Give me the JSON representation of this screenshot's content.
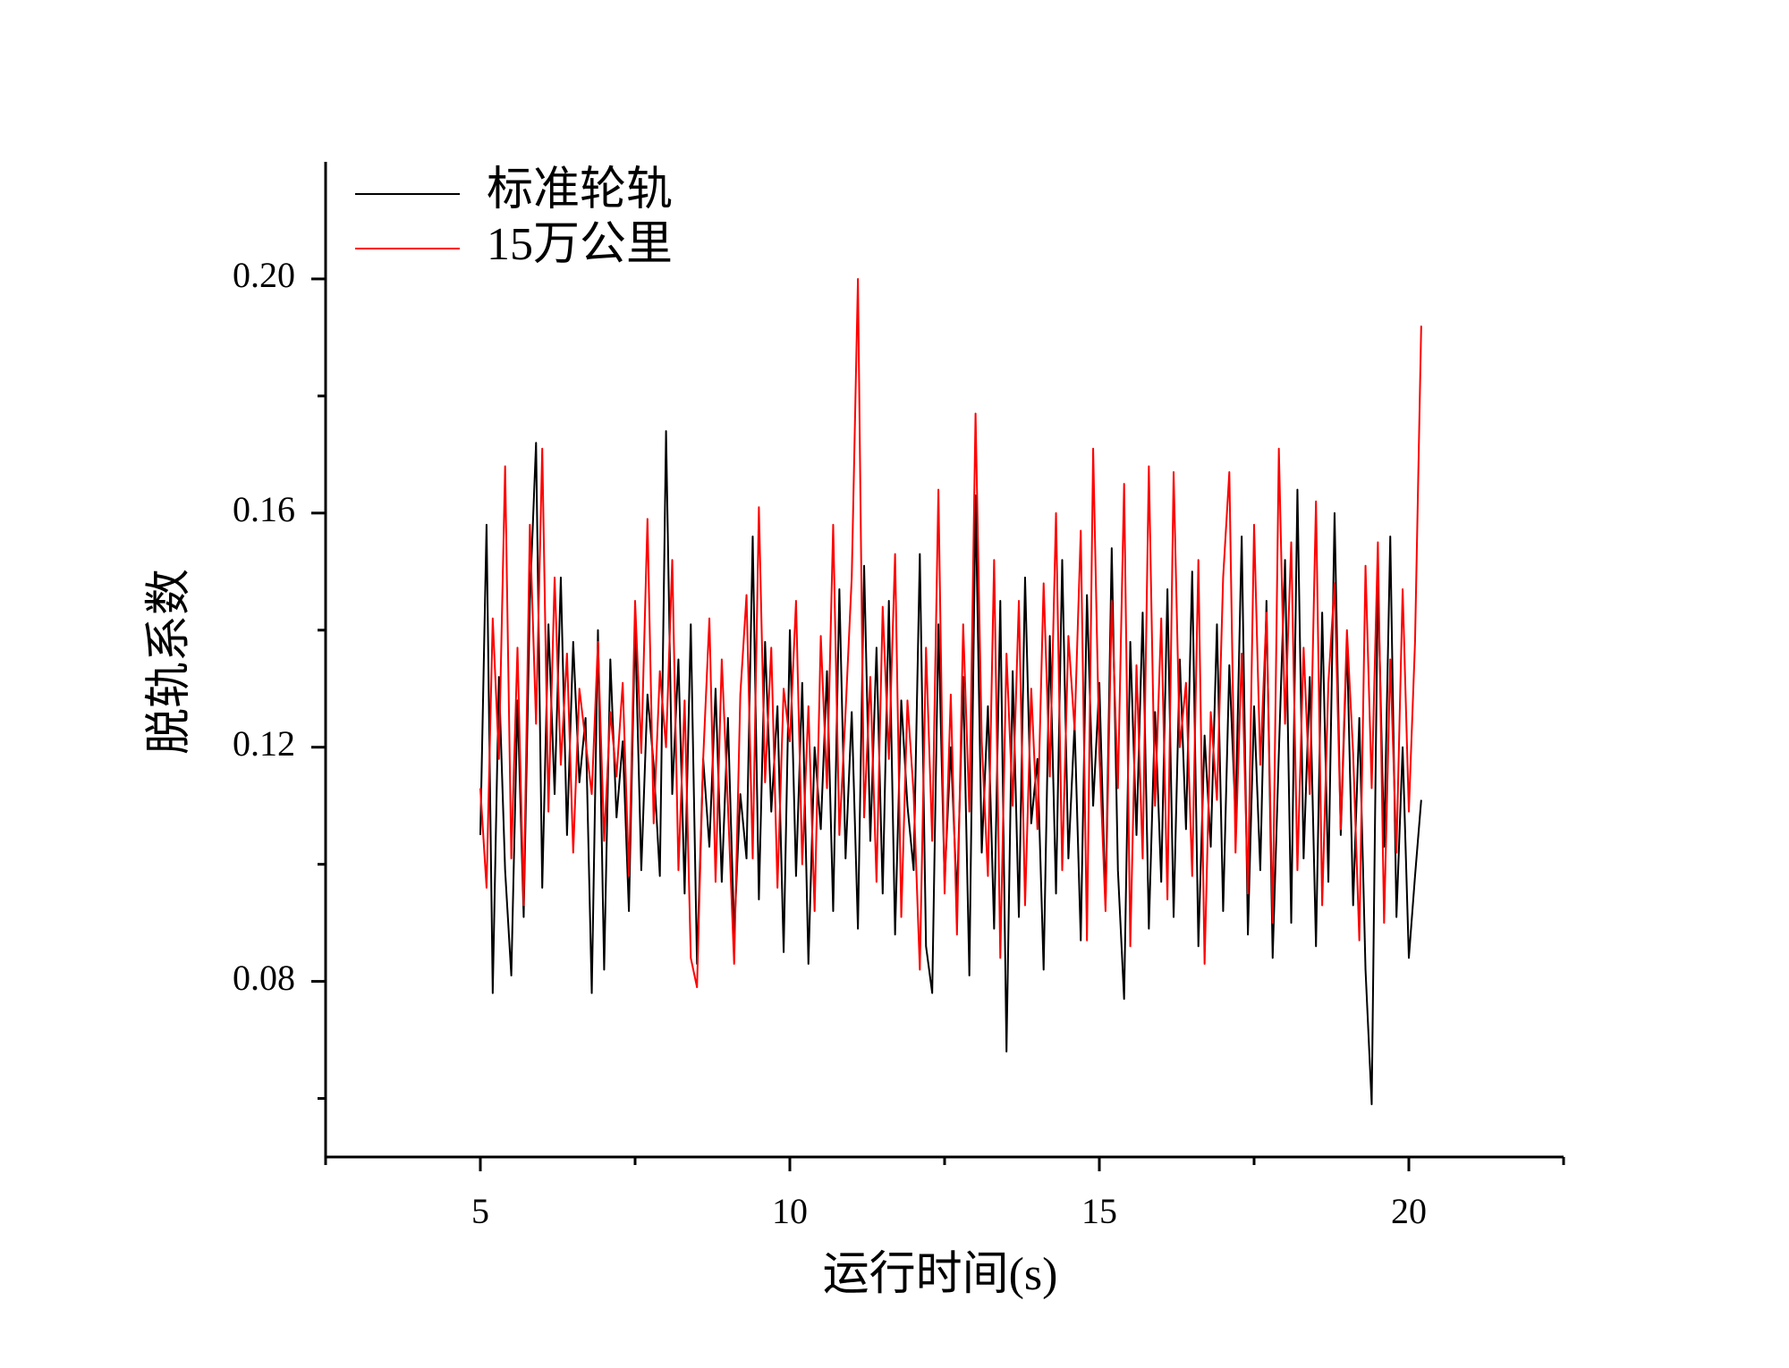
{
  "chart_data": {
    "type": "line",
    "xlabel": "运行时间(s)",
    "ylabel": "脱轨系数",
    "xlim": [
      2.5,
      22.5
    ],
    "xticks": [
      5,
      10,
      15,
      20
    ],
    "xminor_ticks": [
      2.5,
      7.5,
      12.5,
      17.5,
      22.5
    ],
    "ylim": [
      0.05,
      0.22
    ],
    "yticks": [
      {
        "value": 0.08,
        "label": "0.08"
      },
      {
        "value": 0.12,
        "label": "0.12"
      },
      {
        "value": 0.16,
        "label": "0.16"
      },
      {
        "value": 0.2,
        "label": "0.20"
      }
    ],
    "yminor_ticks": [
      0.06,
      0.1,
      0.14,
      0.18
    ],
    "legend": "upper left",
    "grid": false,
    "x": [
      5.0,
      5.1,
      5.2,
      5.3,
      5.4,
      5.5,
      5.6,
      5.7,
      5.8,
      5.9,
      6.0,
      6.1,
      6.2,
      6.3,
      6.4,
      6.5,
      6.6,
      6.7,
      6.8,
      6.9,
      7.0,
      7.1,
      7.2,
      7.3,
      7.4,
      7.5,
      7.6,
      7.7,
      7.8,
      7.9,
      8.0,
      8.1,
      8.2,
      8.3,
      8.4,
      8.5,
      8.6,
      8.7,
      8.8,
      8.9,
      9.0,
      9.1,
      9.2,
      9.3,
      9.4,
      9.5,
      9.6,
      9.7,
      9.8,
      9.9,
      10.0,
      10.1,
      10.2,
      10.3,
      10.4,
      10.5,
      10.6,
      10.7,
      10.8,
      10.9,
      11.0,
      11.1,
      11.2,
      11.3,
      11.4,
      11.5,
      11.6,
      11.7,
      11.8,
      11.9,
      12.0,
      12.1,
      12.2,
      12.3,
      12.4,
      12.5,
      12.6,
      12.7,
      12.8,
      12.9,
      13.0,
      13.1,
      13.2,
      13.3,
      13.4,
      13.5,
      13.6,
      13.7,
      13.8,
      13.9,
      14.0,
      14.1,
      14.2,
      14.3,
      14.4,
      14.5,
      14.6,
      14.7,
      14.8,
      14.9,
      15.0,
      15.1,
      15.2,
      15.3,
      15.4,
      15.5,
      15.6,
      15.7,
      15.8,
      15.9,
      16.0,
      16.1,
      16.2,
      16.3,
      16.4,
      16.5,
      16.6,
      16.7,
      16.8,
      16.9,
      17.0,
      17.1,
      17.2,
      17.3,
      17.4,
      17.5,
      17.6,
      17.7,
      17.8,
      17.9,
      18.0,
      18.1,
      18.2,
      18.3,
      18.4,
      18.5,
      18.6,
      18.7,
      18.8,
      18.9,
      19.0,
      19.1,
      19.2,
      19.3,
      19.4,
      19.5,
      19.6,
      19.7,
      19.8,
      19.9,
      20.0,
      20.1,
      20.2
    ],
    "series": [
      {
        "name": "标准轮轨",
        "color": "#000000",
        "values": [
          0.105,
          0.158,
          0.078,
          0.132,
          0.099,
          0.081,
          0.128,
          0.091,
          0.145,
          0.172,
          0.096,
          0.141,
          0.112,
          0.149,
          0.105,
          0.138,
          0.114,
          0.125,
          0.078,
          0.14,
          0.082,
          0.135,
          0.108,
          0.121,
          0.092,
          0.141,
          0.099,
          0.129,
          0.117,
          0.098,
          0.174,
          0.112,
          0.135,
          0.095,
          0.141,
          0.083,
          0.118,
          0.103,
          0.13,
          0.097,
          0.125,
          0.088,
          0.112,
          0.101,
          0.156,
          0.094,
          0.138,
          0.109,
          0.127,
          0.085,
          0.14,
          0.098,
          0.131,
          0.083,
          0.12,
          0.106,
          0.133,
          0.092,
          0.147,
          0.101,
          0.126,
          0.089,
          0.151,
          0.104,
          0.137,
          0.095,
          0.145,
          0.088,
          0.128,
          0.11,
          0.099,
          0.153,
          0.086,
          0.078,
          0.141,
          0.097,
          0.12,
          0.094,
          0.132,
          0.081,
          0.163,
          0.102,
          0.127,
          0.089,
          0.145,
          0.068,
          0.133,
          0.091,
          0.149,
          0.107,
          0.118,
          0.082,
          0.139,
          0.095,
          0.152,
          0.101,
          0.124,
          0.087,
          0.146,
          0.11,
          0.131,
          0.093,
          0.154,
          0.099,
          0.077,
          0.138,
          0.105,
          0.143,
          0.089,
          0.126,
          0.097,
          0.147,
          0.091,
          0.135,
          0.106,
          0.15,
          0.086,
          0.122,
          0.103,
          0.141,
          0.092,
          0.134,
          0.108,
          0.156,
          0.088,
          0.127,
          0.099,
          0.145,
          0.084,
          0.119,
          0.152,
          0.09,
          0.164,
          0.101,
          0.132,
          0.086,
          0.143,
          0.097,
          0.16,
          0.105,
          0.138,
          0.093,
          0.125,
          0.082,
          0.059,
          0.149,
          0.103,
          0.156,
          0.091,
          0.12,
          0.084,
          0.098,
          0.111
        ]
      },
      {
        "name": "15万公里",
        "color": "#ff0000",
        "values": [
          0.113,
          0.096,
          0.142,
          0.118,
          0.168,
          0.101,
          0.137,
          0.093,
          0.158,
          0.124,
          0.171,
          0.109,
          0.149,
          0.117,
          0.136,
          0.102,
          0.13,
          0.121,
          0.112,
          0.138,
          0.104,
          0.126,
          0.115,
          0.131,
          0.098,
          0.145,
          0.119,
          0.159,
          0.107,
          0.133,
          0.12,
          0.152,
          0.099,
          0.128,
          0.084,
          0.079,
          0.118,
          0.142,
          0.097,
          0.135,
          0.11,
          0.083,
          0.129,
          0.146,
          0.101,
          0.161,
          0.114,
          0.137,
          0.096,
          0.13,
          0.121,
          0.145,
          0.1,
          0.127,
          0.092,
          0.139,
          0.113,
          0.158,
          0.105,
          0.126,
          0.149,
          0.2,
          0.108,
          0.132,
          0.097,
          0.144,
          0.118,
          0.153,
          0.091,
          0.128,
          0.112,
          0.082,
          0.137,
          0.104,
          0.164,
          0.095,
          0.129,
          0.088,
          0.141,
          0.109,
          0.177,
          0.121,
          0.098,
          0.152,
          0.084,
          0.136,
          0.11,
          0.145,
          0.093,
          0.13,
          0.106,
          0.148,
          0.115,
          0.16,
          0.099,
          0.139,
          0.123,
          0.157,
          0.087,
          0.171,
          0.119,
          0.092,
          0.145,
          0.113,
          0.165,
          0.086,
          0.134,
          0.101,
          0.168,
          0.11,
          0.142,
          0.094,
          0.167,
          0.12,
          0.131,
          0.098,
          0.152,
          0.083,
          0.126,
          0.111,
          0.149,
          0.167,
          0.102,
          0.136,
          0.095,
          0.158,
          0.117,
          0.143,
          0.09,
          0.171,
          0.124,
          0.155,
          0.099,
          0.137,
          0.112,
          0.162,
          0.093,
          0.131,
          0.148,
          0.106,
          0.14,
          0.119,
          0.087,
          0.151,
          0.113,
          0.155,
          0.09,
          0.135,
          0.102,
          0.147,
          0.109,
          0.138,
          0.192
        ]
      }
    ]
  }
}
